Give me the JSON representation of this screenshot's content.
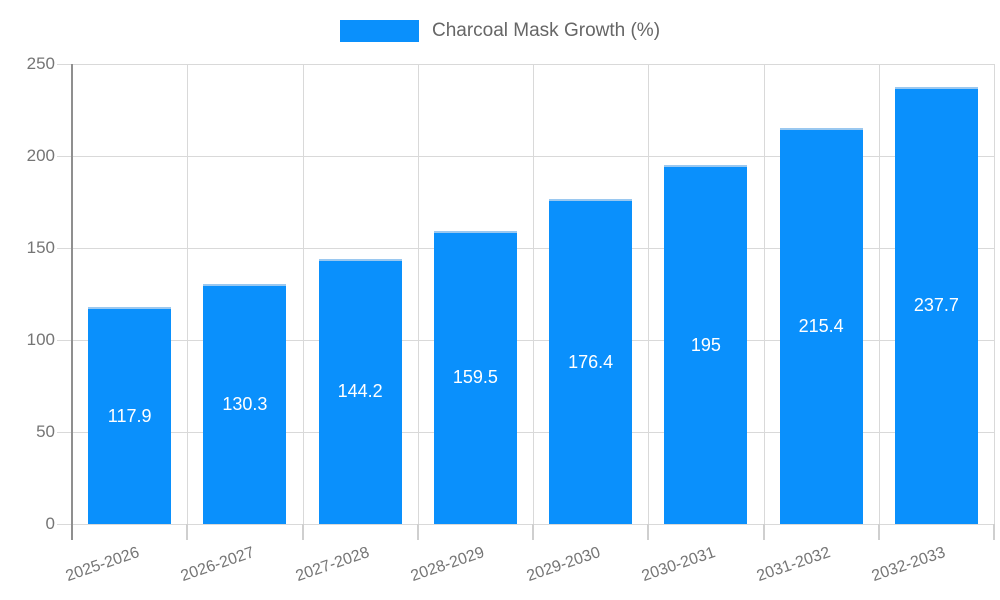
{
  "chart_data": {
    "type": "bar",
    "legend": "Charcoal Mask Growth (%)",
    "legend_position": "top-center",
    "categories": [
      "2025-2026",
      "2026-2027",
      "2027-2028",
      "2028-2029",
      "2029-2030",
      "2030-2031",
      "2031-2032",
      "2032-2033"
    ],
    "values": [
      117.9,
      130.3,
      144.2,
      159.5,
      176.4,
      195,
      215.4,
      237.7
    ],
    "value_labels": [
      "117.9",
      "130.3",
      "144.2",
      "159.5",
      "176.4",
      "195",
      "215.4",
      "237.7"
    ],
    "xlabel": "",
    "ylabel": "",
    "ylim": [
      0,
      250
    ],
    "yticks": [
      0,
      50,
      100,
      150,
      200,
      250
    ],
    "grid": true,
    "bar_color": "#0a90fc",
    "value_label_color": "#ffffff"
  }
}
